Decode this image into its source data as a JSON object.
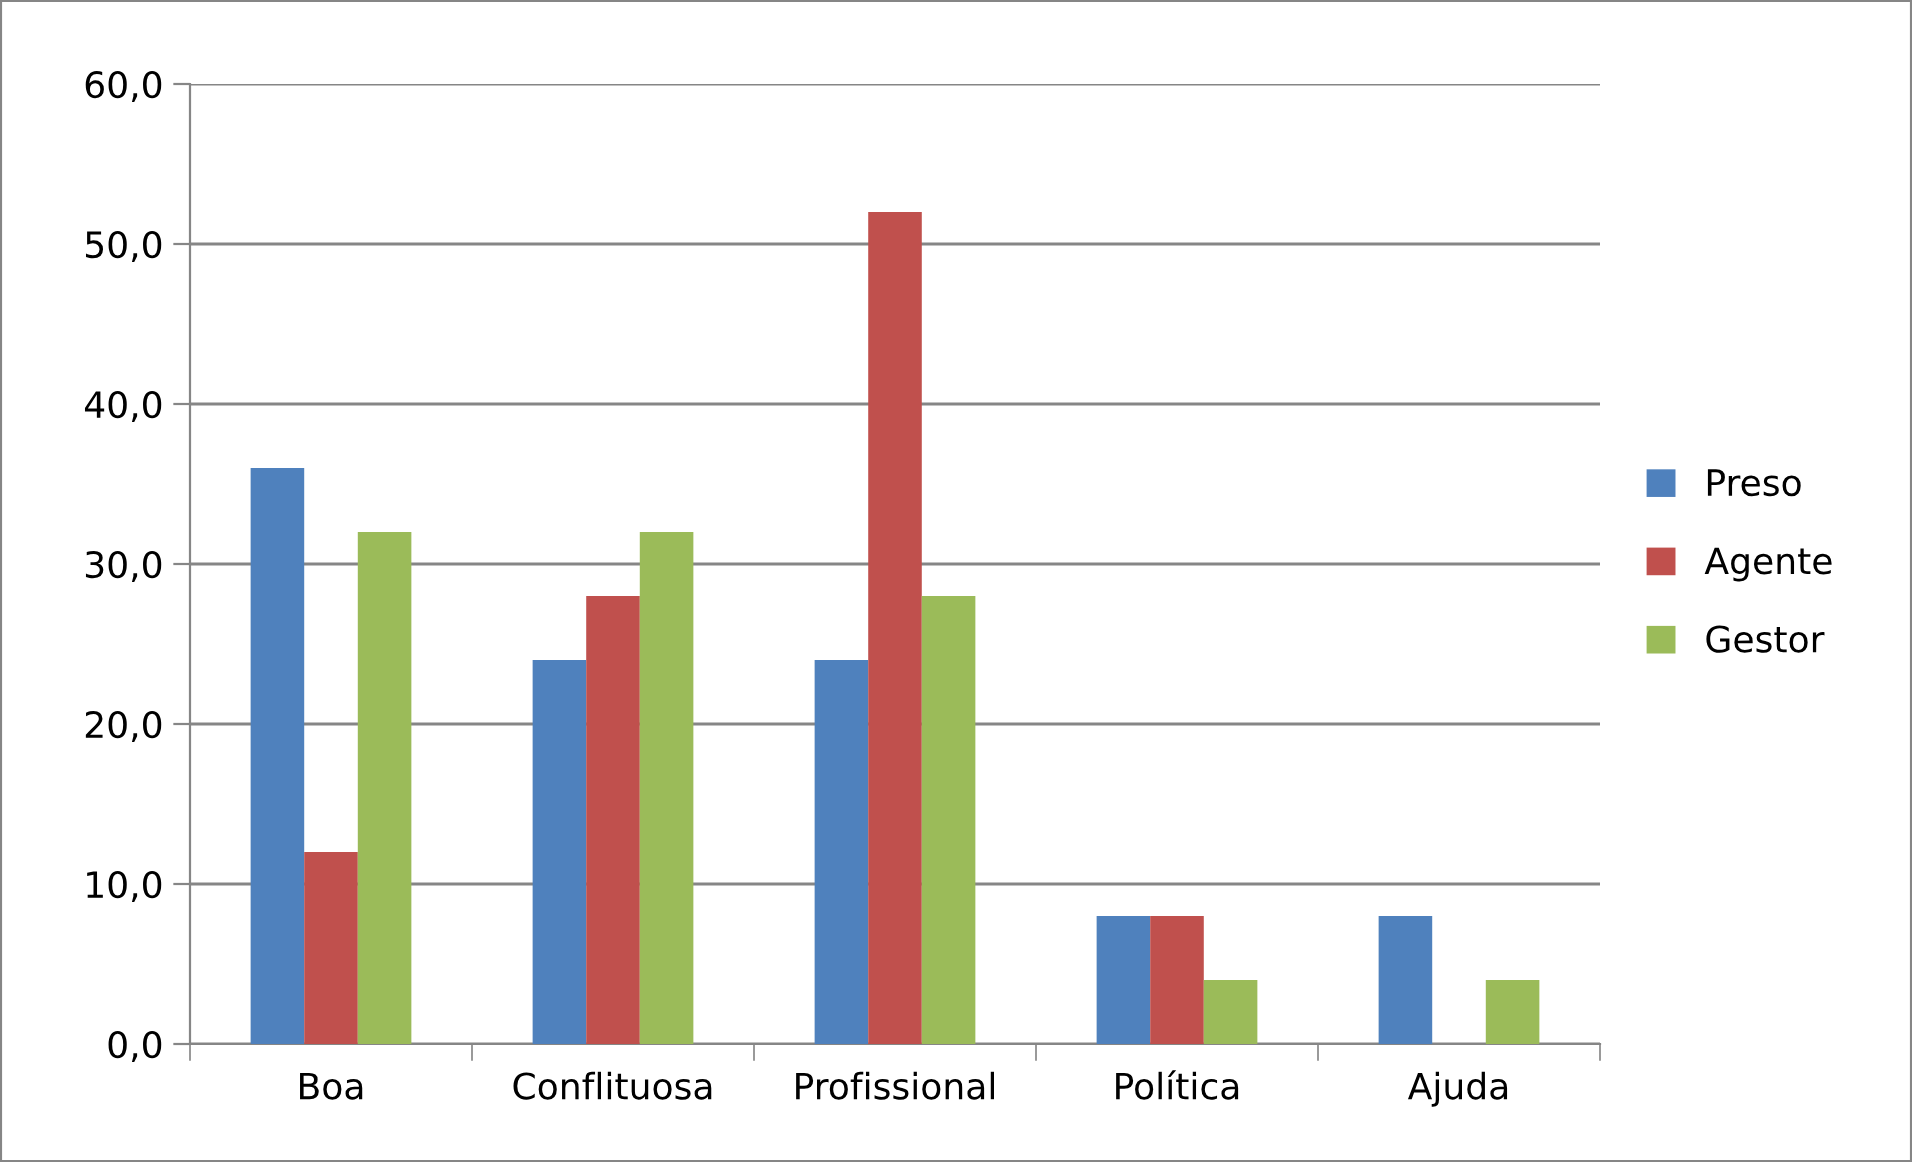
{
  "chart_data": {
    "type": "bar",
    "categories": [
      "Boa",
      "Conflituosa",
      "Profissional",
      "Política",
      "Ajuda"
    ],
    "series": [
      {
        "name": "Preso",
        "color": "#4f81bd",
        "values": [
          36,
          24,
          24,
          8,
          8
        ]
      },
      {
        "name": "Agente",
        "color": "#c0504d",
        "values": [
          12,
          28,
          52,
          8,
          0
        ]
      },
      {
        "name": "Gestor",
        "color": "#9bbb59",
        "values": [
          32,
          32,
          28,
          4,
          4
        ]
      }
    ],
    "ylim": [
      0,
      60
    ],
    "yticks": [
      {
        "value": 0,
        "label": "0,0"
      },
      {
        "value": 10,
        "label": "10,0"
      },
      {
        "value": 20,
        "label": "20,0"
      },
      {
        "value": 30,
        "label": "30,0"
      },
      {
        "value": 40,
        "label": "40,0"
      },
      {
        "value": 50,
        "label": "50,0"
      },
      {
        "value": 60,
        "label": "60,0"
      }
    ],
    "grid": "y",
    "legend": "right"
  }
}
